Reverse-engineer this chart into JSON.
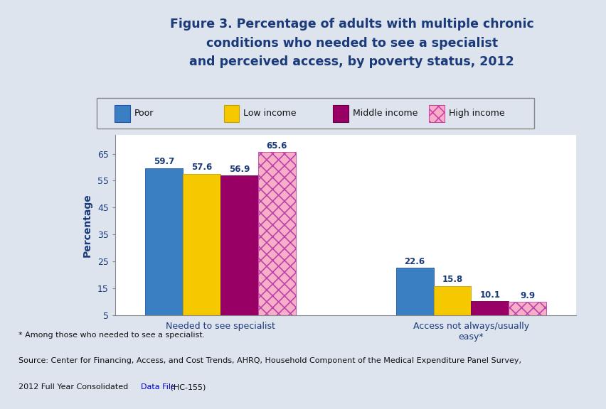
{
  "title": "Figure 3. Percentage of adults with multiple chronic\nconditions who needed to see a specialist\nand perceived access, by poverty status, 2012",
  "categories": [
    "Needed to see specialist",
    "Access not always/usually\neasy*"
  ],
  "series": [
    {
      "label": "Poor",
      "color": "#3a7fc1",
      "values": [
        59.7,
        22.6
      ],
      "hatch": null,
      "ec": "#2255aa"
    },
    {
      "label": "Low income",
      "color": "#f5c800",
      "values": [
        57.6,
        15.8
      ],
      "hatch": null,
      "ec": "#c8a000"
    },
    {
      "label": "Middle income",
      "color": "#990066",
      "values": [
        56.9,
        10.1
      ],
      "hatch": null,
      "ec": "#660044"
    },
    {
      "label": "High income",
      "color": "#f9aec8",
      "values": [
        65.6,
        9.9
      ],
      "hatch": "xx",
      "ec": "#cc44aa"
    }
  ],
  "ylabel": "Percentage",
  "ylim": [
    5,
    72
  ],
  "yticks": [
    5,
    15,
    25,
    35,
    45,
    55,
    65
  ],
  "bar_width": 0.15,
  "bg_color": "#dde4ee",
  "header_bg_color": "#cdd8e8",
  "plot_bg_color": "#ffffff",
  "title_color": "#1a3a7a",
  "ylabel_color": "#1a3a7a",
  "tick_label_color": "#1a3a7a",
  "value_label_color": "#1a3a7a",
  "footnote1": "* Among those who needed to see a specialist.",
  "footnote2": "Source: Center for Financing, Access, and Cost Trends, AHRQ, Household Component of the Medical Expenditure Panel Survey,",
  "footnote3": "2012 Full Year Consolidated ",
  "footnote3_link": "Data File",
  "footnote3_rest": " (HC-155)",
  "link_color": "#0000cc"
}
